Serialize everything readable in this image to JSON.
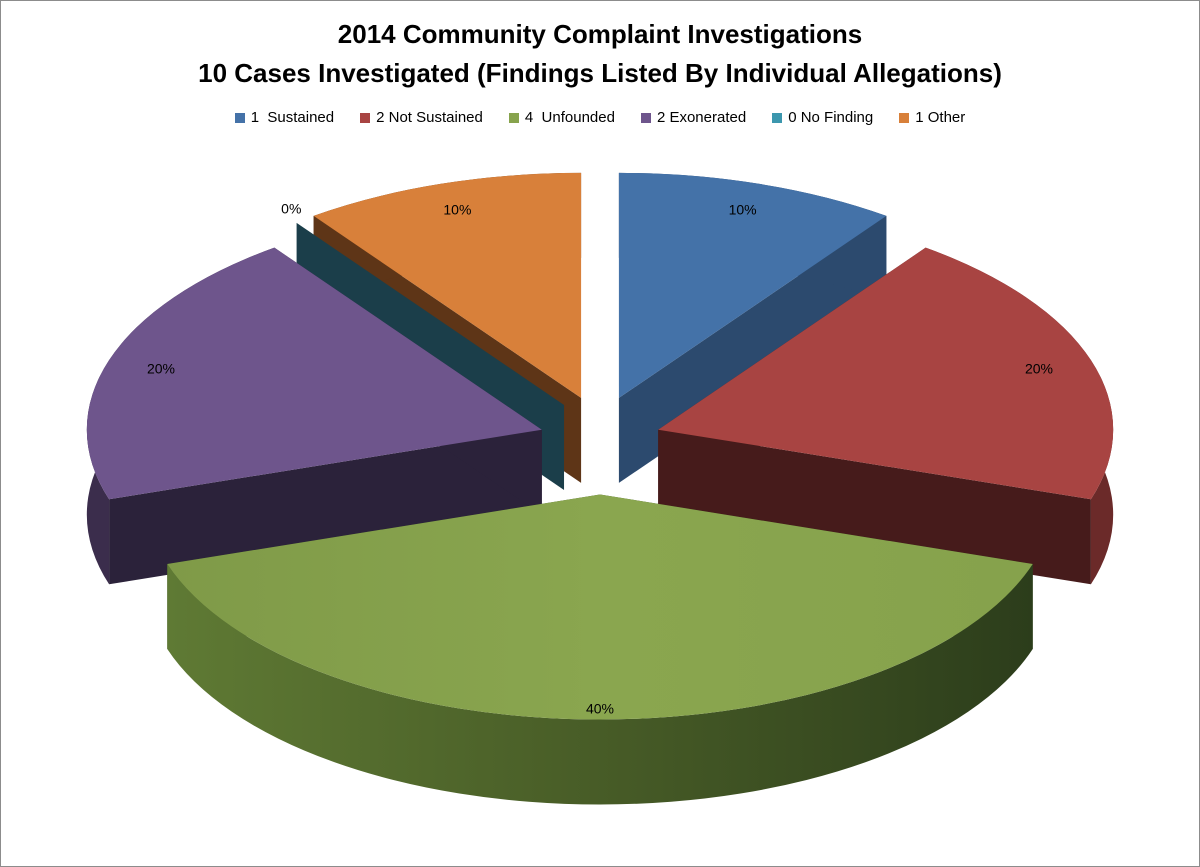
{
  "chart_data": {
    "type": "pie",
    "title": "2014 Community Complaint Investigations",
    "subtitle": "10 Cases Investigated (Findings Listed By Individual Allegations)",
    "legend_position": "top",
    "series": [
      {
        "label": "1  Sustained",
        "value": 1,
        "percent_label": "10%",
        "color": "#4472a8",
        "side_color": "#2c4a6e",
        "dark_color": "#2c4a6e"
      },
      {
        "label": "2 Not Sustained",
        "value": 2,
        "percent_label": "20%",
        "color": "#a84442",
        "side_color": "#6b2a29",
        "dark_color": "#461b1b"
      },
      {
        "label": "4  Unfounded",
        "value": 4,
        "percent_label": "40%",
        "color": "#87a34d",
        "side_color": "#5f7a34",
        "dark_color": "#334720"
      },
      {
        "label": "2 Exonerated",
        "value": 2,
        "percent_label": "20%",
        "color": "#6e558c",
        "side_color": "#3b2d4c",
        "dark_color": "#2b223a"
      },
      {
        "label": "0 No Finding",
        "value": 0,
        "percent_label": "0%",
        "color": "#3c97ae",
        "side_color": "#1b3e4a",
        "dark_color": "#1b3e4a"
      },
      {
        "label": "1 Other",
        "value": 1,
        "percent_label": "10%",
        "color": "#d8803a",
        "side_color": "#5e3517",
        "dark_color": "#5e3517"
      }
    ]
  }
}
